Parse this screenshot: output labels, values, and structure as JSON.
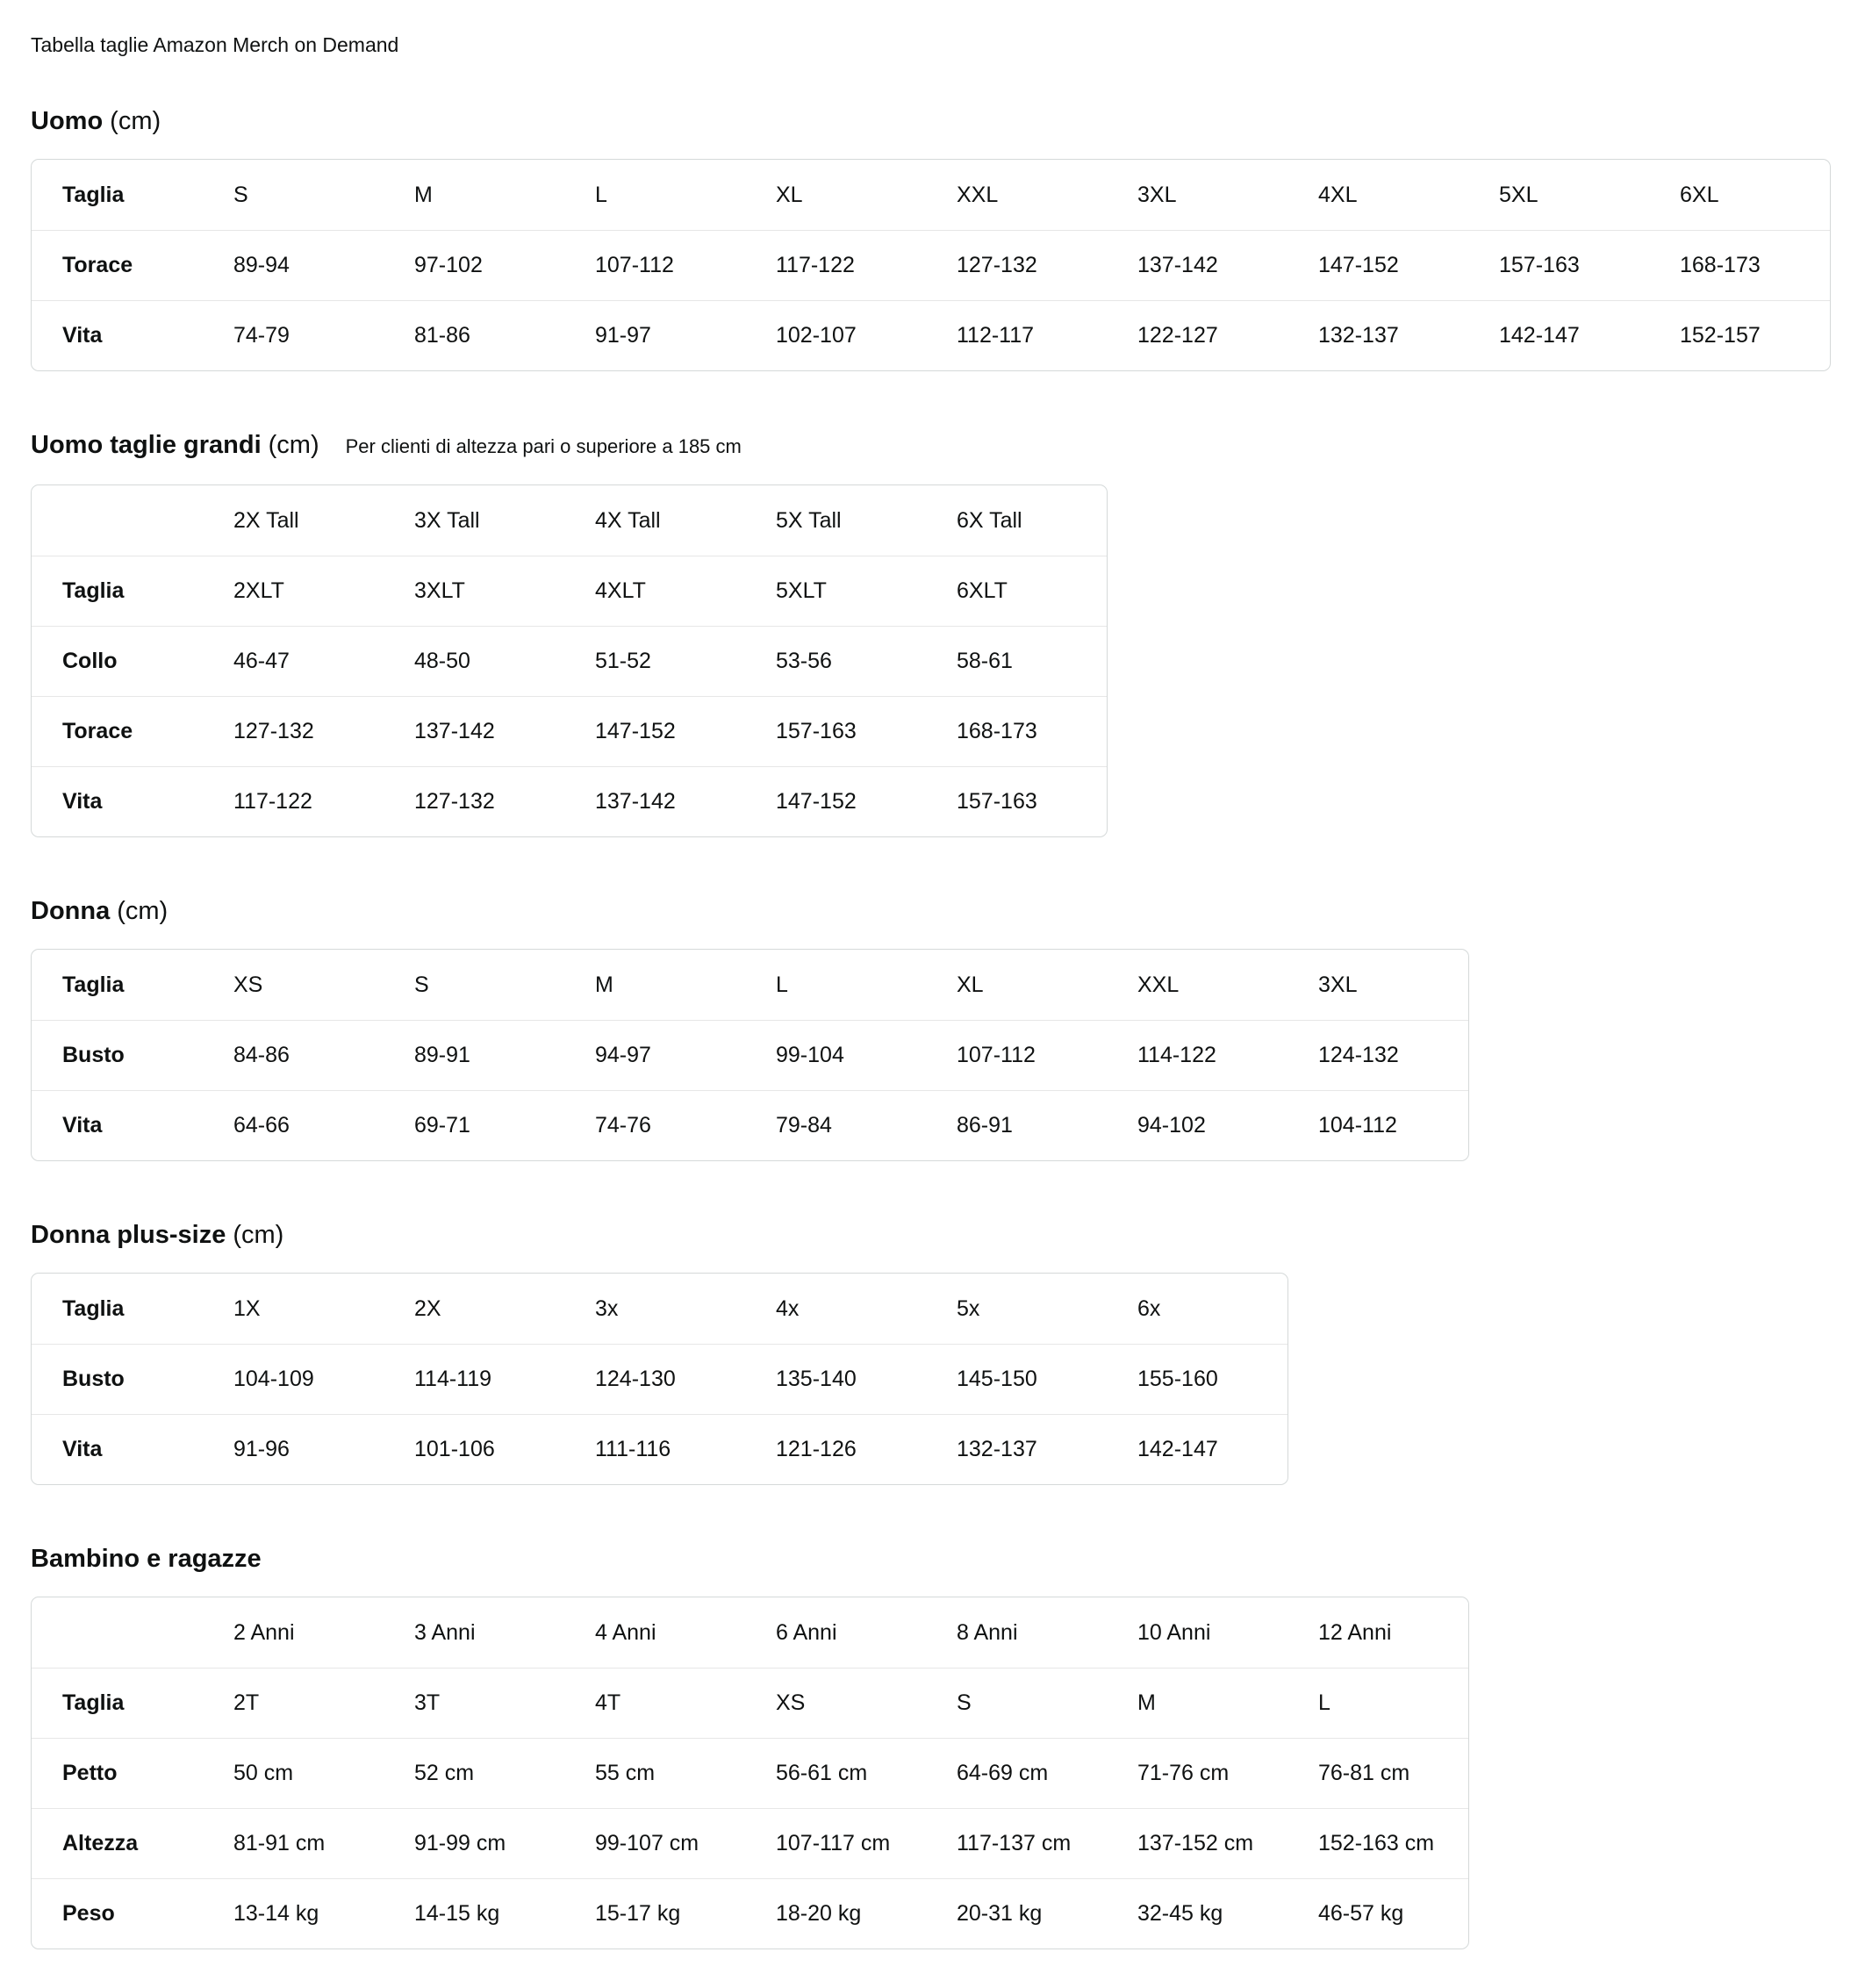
{
  "page": {
    "title": "Tabella taglie Amazon Merch on Demand"
  },
  "colors": {
    "text": "#0f1111",
    "table_border": "#d5d9d9",
    "row_separator": "#e7e7e7",
    "background": "#ffffff"
  },
  "sections": [
    {
      "heading": "Uomo",
      "unit": "(cm)",
      "note": "",
      "rows": [
        {
          "label": "Taglia",
          "values": [
            "S",
            "M",
            "L",
            "XL",
            "XXL",
            "3XL",
            "4XL",
            "5XL",
            "6XL"
          ]
        },
        {
          "label": "Torace",
          "values": [
            "89-94",
            "97-102",
            "107-112",
            "117-122",
            "127-132",
            "137-142",
            "147-152",
            "157-163",
            "168-173"
          ]
        },
        {
          "label": "Vita",
          "values": [
            "74-79",
            "81-86",
            "91-97",
            "102-107",
            "112-117",
            "122-127",
            "132-137",
            "142-147",
            "152-157"
          ]
        }
      ]
    },
    {
      "heading": "Uomo taglie grandi",
      "unit": "(cm)",
      "note": "Per clienti di altezza pari o superiore a 185 cm",
      "rows": [
        {
          "label": "",
          "values": [
            "2X Tall",
            "3X Tall",
            "4X Tall",
            "5X Tall",
            "6X Tall"
          ]
        },
        {
          "label": "Taglia",
          "values": [
            "2XLT",
            "3XLT",
            "4XLT",
            "5XLT",
            "6XLT"
          ]
        },
        {
          "label": "Collo",
          "values": [
            "46-47",
            "48-50",
            "51-52",
            "53-56",
            "58-61"
          ]
        },
        {
          "label": "Torace",
          "values": [
            "127-132",
            "137-142",
            "147-152",
            "157-163",
            "168-173"
          ]
        },
        {
          "label": "Vita",
          "values": [
            "117-122",
            "127-132",
            "137-142",
            "147-152",
            "157-163"
          ]
        }
      ]
    },
    {
      "heading": "Donna",
      "unit": "(cm)",
      "note": "",
      "rows": [
        {
          "label": "Taglia",
          "values": [
            "XS",
            "S",
            "M",
            "L",
            "XL",
            "XXL",
            "3XL"
          ]
        },
        {
          "label": "Busto",
          "values": [
            "84-86",
            "89-91",
            "94-97",
            "99-104",
            "107-112",
            "114-122",
            "124-132"
          ]
        },
        {
          "label": "Vita",
          "values": [
            "64-66",
            "69-71",
            "74-76",
            "79-84",
            "86-91",
            "94-102",
            "104-112"
          ]
        }
      ]
    },
    {
      "heading": "Donna plus-size",
      "unit": "(cm)",
      "note": "",
      "rows": [
        {
          "label": "Taglia",
          "values": [
            "1X",
            "2X",
            "3x",
            "4x",
            "5x",
            "6x"
          ]
        },
        {
          "label": "Busto",
          "values": [
            "104-109",
            "114-119",
            "124-130",
            "135-140",
            "145-150",
            "155-160"
          ]
        },
        {
          "label": "Vita",
          "values": [
            "91-96",
            "101-106",
            "111-116",
            "121-126",
            "132-137",
            "142-147"
          ]
        }
      ]
    },
    {
      "heading": "Bambino e ragazze",
      "unit": "",
      "note": "",
      "rows": [
        {
          "label": "",
          "values": [
            "2 Anni",
            "3 Anni",
            "4 Anni",
            "6 Anni",
            "8 Anni",
            "10 Anni",
            "12 Anni"
          ]
        },
        {
          "label": "Taglia",
          "values": [
            "2T",
            "3T",
            "4T",
            "XS",
            "S",
            "M",
            "L"
          ]
        },
        {
          "label": "Petto",
          "values": [
            "50 cm",
            "52 cm",
            "55 cm",
            "56-61 cm",
            "64-69 cm",
            "71-76 cm",
            "76-81 cm"
          ]
        },
        {
          "label": "Altezza",
          "values": [
            "81-91 cm",
            "91-99 cm",
            "99-107 cm",
            "107-117 cm",
            "117-137 cm",
            "137-152 cm",
            "152-163 cm"
          ]
        },
        {
          "label": "Peso",
          "values": [
            "13-14 kg",
            "14-15 kg",
            "15-17 kg",
            "18-20 kg",
            "20-31 kg",
            "32-45 kg",
            "46-57 kg"
          ]
        }
      ]
    }
  ]
}
